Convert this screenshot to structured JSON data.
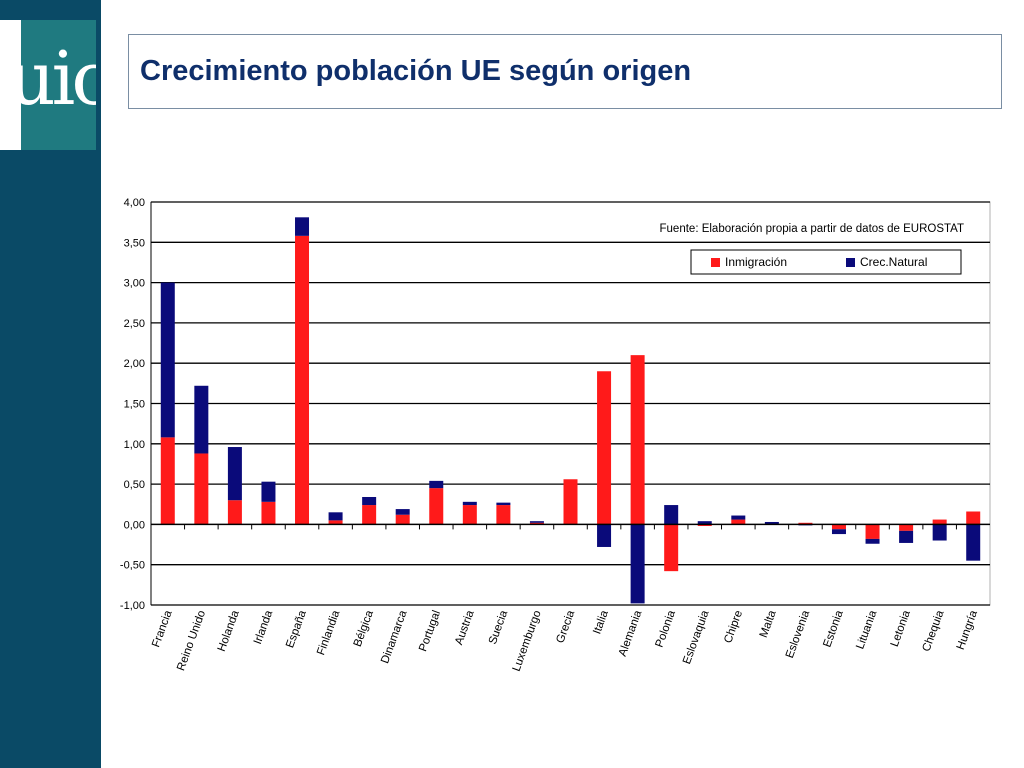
{
  "logo": {
    "text": "uic"
  },
  "slide": {
    "title": "Crecimiento población UE según origen"
  },
  "colors": {
    "sidebar": "#0a4a66",
    "logo_bg": "#1f7a80",
    "inmigracion": "#ff1a1a",
    "crec_natural": "#0a0a7a"
  },
  "chart_data": {
    "type": "bar",
    "stacked": true,
    "title": "",
    "source_note": "Fuente: Elaboración propia a partir de datos de EUROSTAT",
    "xlabel": "",
    "ylabel": "",
    "ylim": [
      -1.0,
      4.0
    ],
    "yticks": [
      "4,00",
      "3,50",
      "3,00",
      "2,50",
      "2,00",
      "1,50",
      "1,00",
      "0,50",
      "0,00",
      "-0,50",
      "-1,00"
    ],
    "grid": true,
    "legend": "top-right",
    "categories": [
      "Francia",
      "Reino Unido",
      "Holanda",
      "Irlanda",
      "España",
      "Finlandia",
      "Bélgica",
      "Dinamarca",
      "Portugal",
      "Austria",
      "Suecia",
      "Luxemburgo",
      "Grecia",
      "Italia",
      "Alemania",
      "Polonia",
      "Eslovaquia",
      "Chipre",
      "Malta",
      "Eslovenia",
      "Estonia",
      "Lituania",
      "Letonia",
      "Chequia",
      "Hungría"
    ],
    "series": [
      {
        "name": "Inmigración",
        "values": [
          1.08,
          0.88,
          0.3,
          0.28,
          3.58,
          0.05,
          0.24,
          0.12,
          0.45,
          0.24,
          0.24,
          0.02,
          0.56,
          1.9,
          2.1,
          -0.58,
          -0.02,
          0.06,
          0.0,
          0.02,
          -0.06,
          -0.18,
          -0.08,
          0.06,
          0.16
        ]
      },
      {
        "name": "Crec.Natural",
        "values": [
          1.92,
          0.84,
          0.66,
          0.25,
          0.23,
          0.1,
          0.1,
          0.07,
          0.09,
          0.04,
          0.03,
          0.02,
          0.0,
          -0.28,
          -0.98,
          0.24,
          0.04,
          0.05,
          0.03,
          -0.01,
          -0.06,
          -0.06,
          -0.15,
          -0.2,
          -0.45
        ]
      }
    ]
  }
}
